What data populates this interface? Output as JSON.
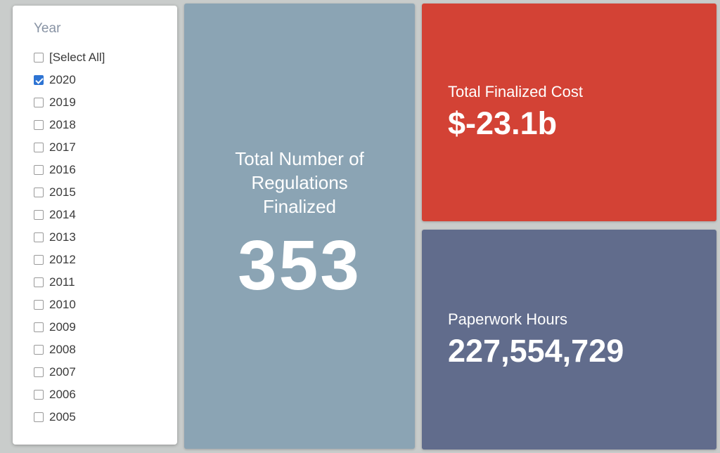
{
  "filter_panel": {
    "title": "Year",
    "options": [
      {
        "label": "[Select All]",
        "checked": false
      },
      {
        "label": "2020",
        "checked": true
      },
      {
        "label": "2019",
        "checked": false
      },
      {
        "label": "2018",
        "checked": false
      },
      {
        "label": "2017",
        "checked": false
      },
      {
        "label": "2016",
        "checked": false
      },
      {
        "label": "2015",
        "checked": false
      },
      {
        "label": "2014",
        "checked": false
      },
      {
        "label": "2013",
        "checked": false
      },
      {
        "label": "2012",
        "checked": false
      },
      {
        "label": "2011",
        "checked": false
      },
      {
        "label": "2010",
        "checked": false
      },
      {
        "label": "2009",
        "checked": false
      },
      {
        "label": "2008",
        "checked": false
      },
      {
        "label": "2007",
        "checked": false
      },
      {
        "label": "2006",
        "checked": false
      },
      {
        "label": "2005",
        "checked": false
      }
    ]
  },
  "kpi_cards": {
    "regulations": {
      "title": "Total Number of Regulations Finalized",
      "value": "353",
      "bg_color": "#8ba4b4"
    },
    "cost": {
      "title": "Total Finalized Cost",
      "value": "$-23.1b",
      "bg_color": "#d34235"
    },
    "paperwork": {
      "title": "Paperwork Hours",
      "value": "227,554,729",
      "bg_color": "#616c8c"
    }
  },
  "colors": {
    "page_bg": "#c9cccb",
    "card_steel": "#8ba4b4",
    "card_red": "#d34235",
    "card_slate": "#616c8c",
    "checkbox_accent": "#2e74d3",
    "filter_title_text": "#8893a4",
    "filter_option_text": "#3a3a3a",
    "card_text": "#ffffff"
  }
}
